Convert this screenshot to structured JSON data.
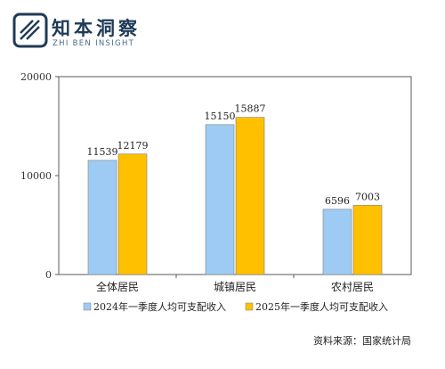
{
  "logo": {
    "title": "知本洞察",
    "subtitle": "ZHI BEN INSIGHT"
  },
  "source": "资料来源：国家统计局",
  "chart_data": {
    "type": "bar",
    "title": "",
    "xlabel": "",
    "ylabel": "",
    "categories": [
      "全体居民",
      "城镇居民",
      "农村居民"
    ],
    "series": [
      {
        "name": "2024年一季度人均可支配收入",
        "values": [
          11539,
          15150,
          6596
        ],
        "color": "#9ecbf3"
      },
      {
        "name": "2025年一季度人均可支配收入",
        "values": [
          12179,
          15887,
          7003
        ],
        "color": "#ffc000"
      }
    ],
    "ylim": [
      0,
      20000
    ],
    "yticks": [
      0,
      10000,
      20000
    ],
    "grid": false,
    "data_labels": true,
    "legend_position": "bottom"
  }
}
